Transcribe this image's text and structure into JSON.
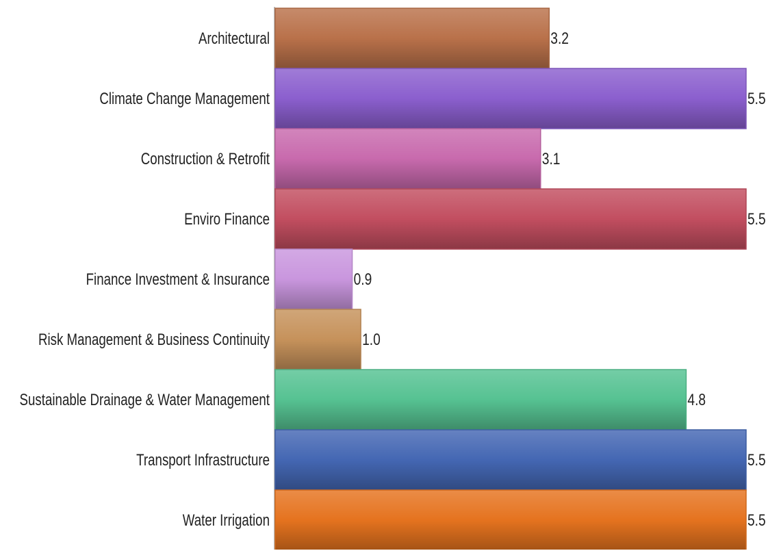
{
  "chart_data": {
    "type": "bar",
    "orientation": "horizontal",
    "categories": [
      "Architectural",
      "Climate Change Management",
      "Construction & Retrofit",
      "Enviro Finance",
      "Finance Investment & Insurance",
      "Risk Management & Business Continuity",
      "Sustainable Drainage & Water Management",
      "Transport Infrastructure",
      "Water Irrigation"
    ],
    "values": [
      3.2,
      5.5,
      3.1,
      5.5,
      0.9,
      1.0,
      4.8,
      5.5,
      5.5
    ],
    "value_labels": [
      "3.2",
      "5.5",
      "3.1",
      "5.5",
      "0.9",
      "1.0",
      "4.8",
      "5.5",
      "5.5"
    ],
    "colors": [
      "#b9714a",
      "#8b5fce",
      "#c86aad",
      "#c24e60",
      "#c996de",
      "#c6925b",
      "#56c292",
      "#4467b3",
      "#e5731f"
    ],
    "xlim": [
      0,
      5.5
    ],
    "title": "",
    "xlabel": "",
    "ylabel": "",
    "grid": false,
    "legend": "none"
  }
}
